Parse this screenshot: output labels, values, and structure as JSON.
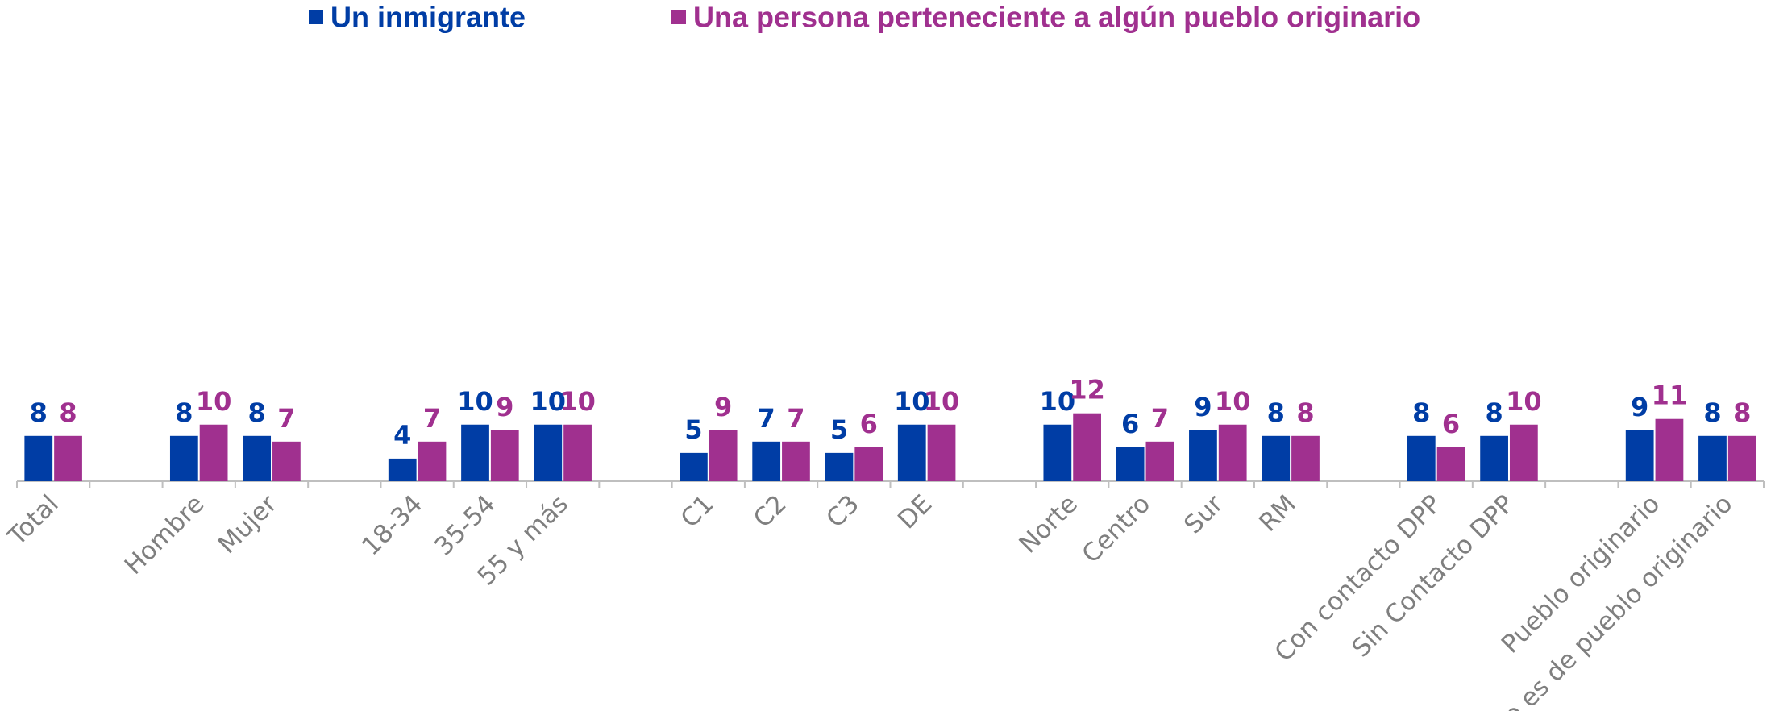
{
  "chart_data": {
    "type": "bar",
    "categories": [
      "Total",
      null,
      "Hombre",
      "Mujer",
      null,
      "18-34",
      "35-54",
      "55 y más",
      null,
      "C1",
      "C2",
      "C3",
      "DE",
      null,
      "Norte",
      "Centro",
      "Sur",
      "RM",
      null,
      "Con contacto DPP",
      "Sin Contacto DPP",
      null,
      "Pueblo originario",
      "No es de pueblo originario"
    ],
    "series": [
      {
        "name": "Un inmigrante",
        "color": "#003da5",
        "values": [
          8,
          null,
          8,
          8,
          null,
          4,
          10,
          10,
          null,
          5,
          7,
          5,
          10,
          null,
          10,
          6,
          9,
          8,
          null,
          8,
          8,
          null,
          9,
          8
        ]
      },
      {
        "name": "Una persona perteneciente a algún pueblo originario",
        "color": "#a0308f",
        "values": [
          8,
          null,
          10,
          7,
          null,
          7,
          9,
          10,
          null,
          9,
          7,
          6,
          10,
          null,
          12,
          7,
          10,
          8,
          null,
          6,
          10,
          null,
          11,
          8
        ]
      }
    ],
    "ylim": [
      0,
      80
    ],
    "legend": "top"
  }
}
